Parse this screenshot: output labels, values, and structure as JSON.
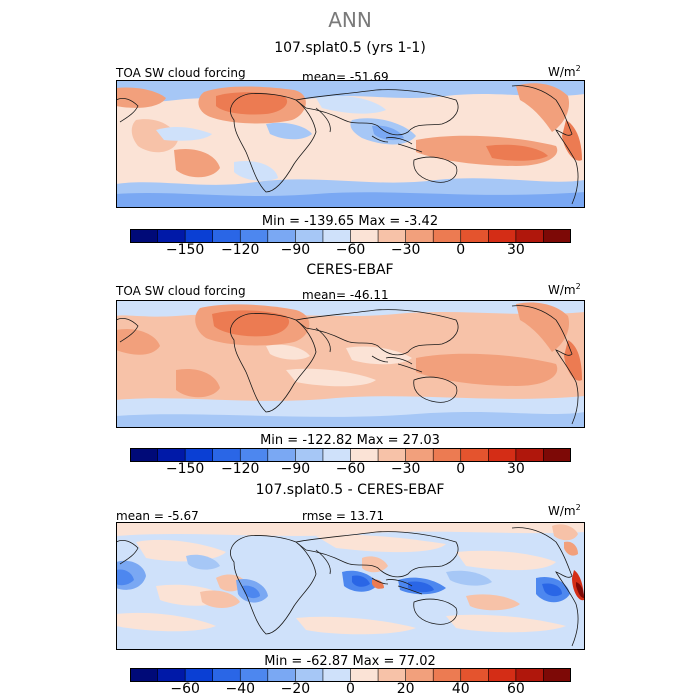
{
  "page": {
    "title": "ANN"
  },
  "panels": [
    {
      "title": "107.splat0.5 (yrs 1-1)",
      "variable": "TOA SW cloud forcing",
      "stat": "mean= -51.69",
      "units": "W/m",
      "units_sup": "2",
      "minmax": "Min = -139.65 Max = -3.42",
      "colorbar": {
        "colors": [
          "#000a78",
          "#0019a8",
          "#0a3fd4",
          "#2a66e6",
          "#4d87ef",
          "#7aa8f3",
          "#a6c7f6",
          "#cfe1fa",
          "#fbe3d6",
          "#f7c2a8",
          "#f2a07c",
          "#ec7b52",
          "#e4542e",
          "#d42d16",
          "#b0170c",
          "#7d0906"
        ],
        "tick_labels": [
          "-150",
          "-120",
          "-90",
          "-60",
          "-30",
          "0",
          "30"
        ]
      }
    },
    {
      "title": "CERES-EBAF",
      "variable": "TOA SW cloud forcing",
      "stat": "mean= -46.11",
      "units": "W/m",
      "units_sup": "2",
      "minmax": "Min = -122.82 Max = 27.03",
      "colorbar": {
        "colors": [
          "#000a78",
          "#0019a8",
          "#0a3fd4",
          "#2a66e6",
          "#4d87ef",
          "#7aa8f3",
          "#a6c7f6",
          "#cfe1fa",
          "#fbe3d6",
          "#f7c2a8",
          "#f2a07c",
          "#ec7b52",
          "#e4542e",
          "#d42d16",
          "#b0170c",
          "#7d0906"
        ],
        "tick_labels": [
          "-150",
          "-120",
          "-90",
          "-60",
          "-30",
          "0",
          "30"
        ]
      }
    },
    {
      "title": "107.splat0.5 - CERES-EBAF",
      "stat": "mean = -5.67",
      "rmse": "rmse = 13.71",
      "units": "W/m",
      "units_sup": "2",
      "minmax": "Min = -62.87 Max = 77.02",
      "colorbar": {
        "colors": [
          "#000a78",
          "#0019a8",
          "#0a3fd4",
          "#2a66e6",
          "#4d87ef",
          "#7aa8f3",
          "#a6c7f6",
          "#cfe1fa",
          "#fbe3d6",
          "#f7c2a8",
          "#f2a07c",
          "#ec7b52",
          "#e4542e",
          "#d42d16",
          "#b0170c",
          "#7d0906"
        ],
        "tick_labels": [
          "-60",
          "-40",
          "-20",
          "0",
          "20",
          "40",
          "60"
        ]
      }
    }
  ]
}
